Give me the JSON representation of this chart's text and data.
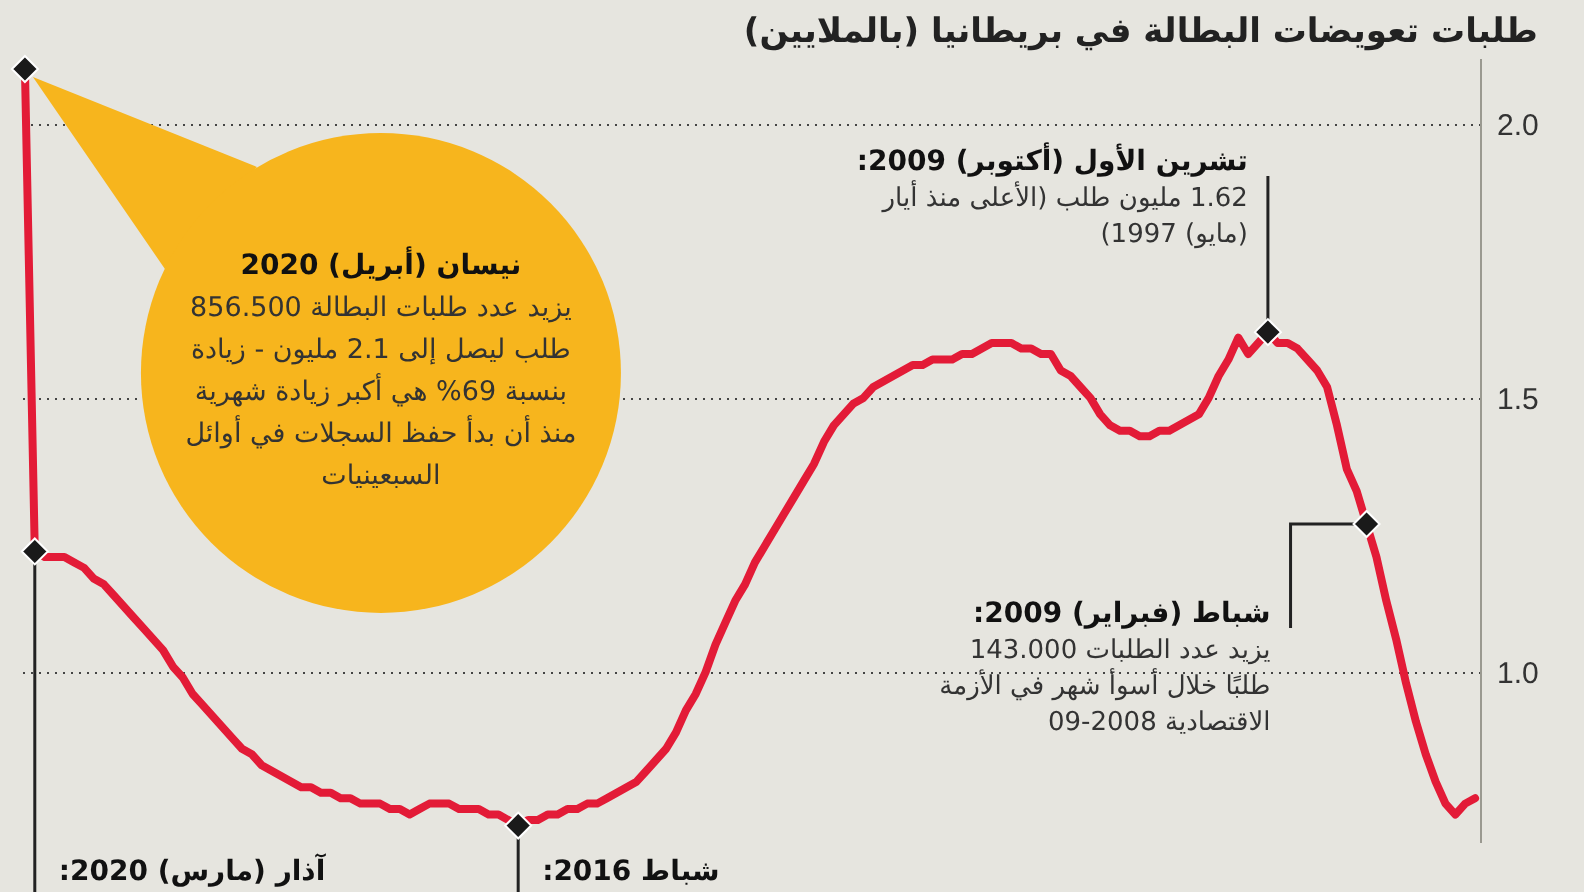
{
  "chart_data": {
    "type": "line",
    "title": "طلبات تعويضات البطالة في بريطانيا (بالملايين)",
    "categories": [
      null,
      null,
      null,
      null,
      null,
      null,
      null,
      null,
      null,
      null,
      null,
      null,
      null,
      null,
      null,
      null,
      null,
      null,
      null,
      null,
      null,
      null,
      null,
      null,
      null,
      null,
      null,
      null,
      null,
      null,
      null,
      null,
      null,
      null,
      null,
      null,
      null,
      null,
      null,
      null,
      null,
      null,
      null,
      null,
      null,
      null,
      null,
      null,
      null,
      null,
      null,
      null,
      null,
      null,
      null,
      null,
      null,
      null,
      null,
      null,
      null,
      null,
      null,
      null,
      null,
      null,
      null,
      null,
      null,
      null,
      null,
      null,
      null,
      null,
      null,
      null,
      null,
      null,
      null,
      null,
      null,
      null,
      null,
      null,
      null,
      null,
      null,
      null,
      null,
      null,
      null,
      null,
      null,
      null,
      null,
      null,
      null,
      null,
      null,
      null,
      null,
      null,
      null,
      null,
      null,
      null,
      null,
      null,
      null,
      null,
      null,
      null,
      null,
      null,
      null,
      null,
      null,
      null,
      null,
      null,
      null,
      null,
      null,
      null,
      null,
      null,
      null,
      null,
      null,
      null,
      null,
      null,
      null,
      null,
      null,
      null,
      null,
      null,
      null,
      null,
      null,
      null,
      null,
      null,
      null,
      null,
      null,
      null
    ],
    "series": [
      {
        "color": "#e31b37",
        "values": [
          2.1,
          1.22,
          1.21,
          1.21,
          1.21,
          1.2,
          1.19,
          1.17,
          1.16,
          1.14,
          1.12,
          1.1,
          1.08,
          1.06,
          1.04,
          1.01,
          0.99,
          0.96,
          0.94,
          0.92,
          0.9,
          0.88,
          0.86,
          0.85,
          0.83,
          0.82,
          0.81,
          0.8,
          0.79,
          0.79,
          0.78,
          0.78,
          0.77,
          0.77,
          0.76,
          0.76,
          0.76,
          0.75,
          0.75,
          0.74,
          0.75,
          0.76,
          0.76,
          0.76,
          0.75,
          0.75,
          0.75,
          0.74,
          0.74,
          0.73,
          0.72,
          0.73,
          0.73,
          0.74,
          0.74,
          0.75,
          0.75,
          0.76,
          0.76,
          0.77,
          0.78,
          0.79,
          0.8,
          0.82,
          0.84,
          0.86,
          0.89,
          0.93,
          0.96,
          1.0,
          1.05,
          1.09,
          1.13,
          1.16,
          1.2,
          1.23,
          1.26,
          1.29,
          1.32,
          1.35,
          1.38,
          1.42,
          1.45,
          1.47,
          1.49,
          1.5,
          1.52,
          1.53,
          1.54,
          1.55,
          1.56,
          1.56,
          1.57,
          1.57,
          1.57,
          1.58,
          1.58,
          1.59,
          1.6,
          1.6,
          1.6,
          1.59,
          1.59,
          1.58,
          1.58,
          1.55,
          1.54,
          1.52,
          1.5,
          1.47,
          1.45,
          1.44,
          1.44,
          1.43,
          1.43,
          1.44,
          1.44,
          1.45,
          1.46,
          1.47,
          1.5,
          1.54,
          1.57,
          1.61,
          1.58,
          1.6,
          1.62,
          1.6,
          1.6,
          1.59,
          1.57,
          1.55,
          1.52,
          1.45,
          1.37,
          1.33,
          1.27,
          1.21,
          1.13,
          1.06,
          0.98,
          0.91,
          0.85,
          0.8,
          0.76,
          0.74,
          0.76,
          0.77
        ]
      }
    ],
    "ylim": [
      0.69,
      2.12
    ],
    "yticks": [
      {
        "value": 1,
        "label": "1.0"
      },
      1.5,
      {
        "value": 2,
        "label": "2.0"
      }
    ],
    "grid": "y",
    "tick_labels": "y",
    "annotations": [
      "نيسان (أبريل) 2020\nيزيد عدد طلبات البطالة 856.500 طلب ليصل إلى 2.1 مليون - زيادة بنسبة 69% هي أكبر زيادة شهرية منذ أن بدأ حفظ السجلات في أوائل السبعينيات",
      "آذار (مارس) 2020:",
      "شباط 2016:",
      "تشرين الأول (أكتوبر) 2009:\n1.62 مليون طلب (الأعلى منذ أيار (مايو) 1997)",
      "شباط (فبراير) 2009:\nيزيد عدد الطلبات 143.000 طلبًا خلال أسوأ شهر في الأزمة الاقتصادية 2008-09"
    ]
  }
}
